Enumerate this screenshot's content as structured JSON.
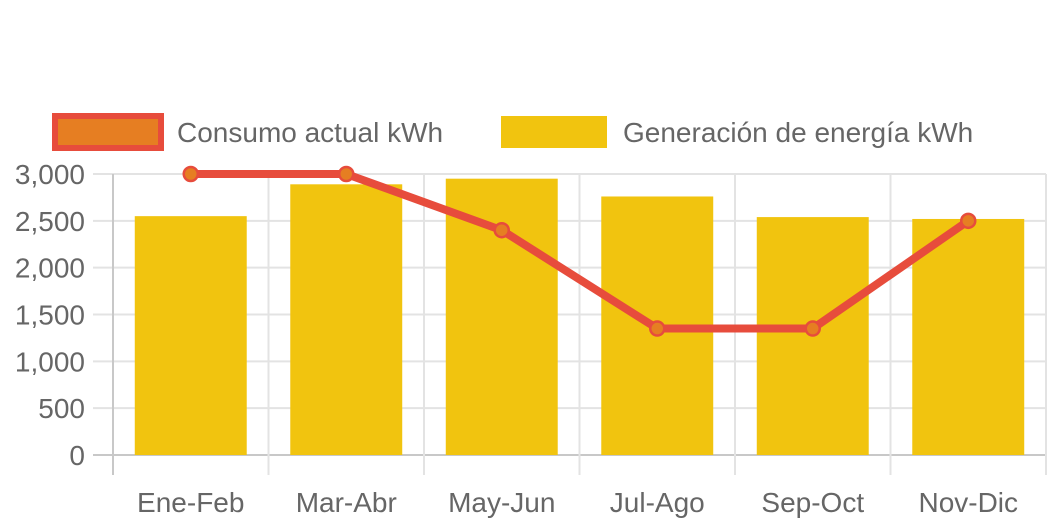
{
  "chart_data": {
    "type": "bar",
    "categories": [
      "Ene-Feb",
      "Mar-Abr",
      "May-Jun",
      "Jul-Ago",
      "Sep-Oct",
      "Nov-Dic"
    ],
    "series": [
      {
        "name": "Consumo actual kWh",
        "type": "line",
        "values": [
          3000,
          3000,
          2400,
          1350,
          1350,
          2500
        ],
        "color": "#e74c3c",
        "fill_color": "#e67e22"
      },
      {
        "name": "Generación de energía kWh",
        "type": "bar",
        "values": [
          2550,
          2890,
          2950,
          2760,
          2540,
          2520
        ],
        "color": "#f1c40f"
      }
    ],
    "ylim": [
      0,
      3000
    ],
    "yticks": [
      0,
      500,
      1000,
      1500,
      2000,
      2500,
      3000
    ],
    "ytick_labels": [
      "0",
      "500",
      "1,000",
      "1,500",
      "2,000",
      "2,500",
      "3,000"
    ],
    "grid": true,
    "legend_position": "top"
  }
}
